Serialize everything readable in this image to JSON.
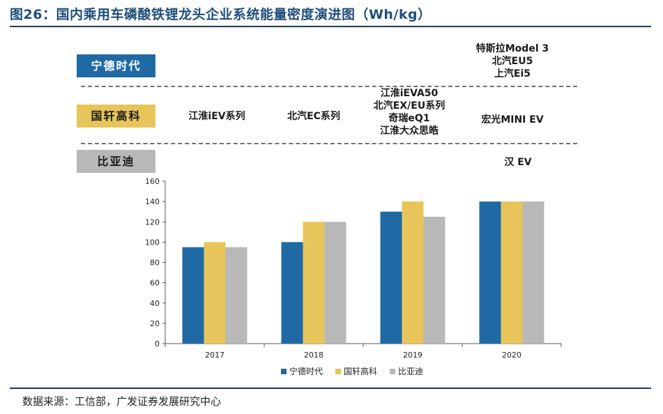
{
  "figure": {
    "title": "图26：国内乘用车磷酸铁锂龙头企业系统能量密度演进图（Wh/kg）",
    "source": "数据来源：工信部，广发证券发展研究中心"
  },
  "companies": [
    {
      "label": "宁德时代",
      "color": "#1f6aa5"
    },
    {
      "label": "国轩高科",
      "color": "#e8c55a"
    },
    {
      "label": "比亚迪",
      "color": "#b8b8b8"
    }
  ],
  "models": {
    "catl_2020": [
      "特斯拉Model 3",
      "北汽EU5",
      "上汽Ei5"
    ],
    "gotion_2017": [
      "江淮iEV系列"
    ],
    "gotion_2018": [
      "北汽EC系列"
    ],
    "gotion_2019": [
      "江淮iEVA50",
      "北汽EX/EU系列",
      "奇瑞eQ1",
      "江淮大众思皓"
    ],
    "gotion_2020": [
      "宏光MINI EV"
    ],
    "byd_2020": [
      "汉 EV"
    ]
  },
  "chart_data": {
    "type": "bar",
    "categories": [
      "2017",
      "2018",
      "2019",
      "2020"
    ],
    "series": [
      {
        "name": "宁德时代",
        "values": [
          95,
          100,
          130,
          140
        ],
        "color": "#1f6aa5"
      },
      {
        "name": "国轩高科",
        "values": [
          100,
          120,
          140,
          140
        ],
        "color": "#e8c55a"
      },
      {
        "name": "比亚迪",
        "values": [
          95,
          120,
          125,
          140
        ],
        "color": "#b8b8b8"
      }
    ],
    "yticks": [
      0,
      20,
      40,
      60,
      80,
      100,
      120,
      140,
      160
    ],
    "ylim": [
      0,
      160
    ],
    "legend_position": "bottom"
  }
}
